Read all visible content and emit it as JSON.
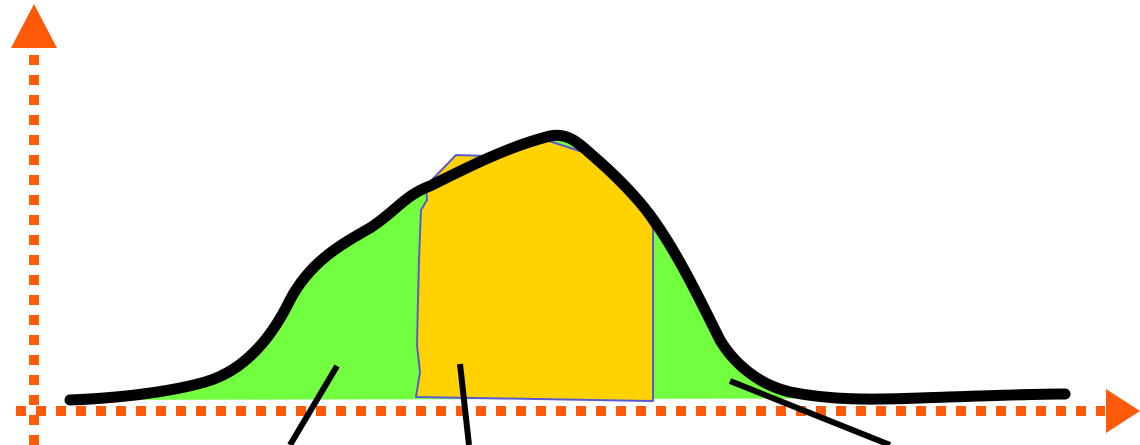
{
  "diagram": {
    "colors": {
      "background": "#ffffff",
      "axis": "#ff5a0a",
      "curve": "#000000",
      "outer_fill": "#72ff40",
      "inner_fill": "#ffd200",
      "inner_outline": "#5a5ad2",
      "leader_lines": "#000000"
    },
    "axes": {
      "style": "dotted",
      "x_arrow": "right",
      "y_arrow": "up"
    },
    "regions": [
      {
        "name": "left-tail-area",
        "fill": "outer_fill"
      },
      {
        "name": "central-area",
        "fill": "inner_fill"
      },
      {
        "name": "right-tail-area",
        "fill": "outer_fill"
      }
    ],
    "leader_line_count": 3
  }
}
